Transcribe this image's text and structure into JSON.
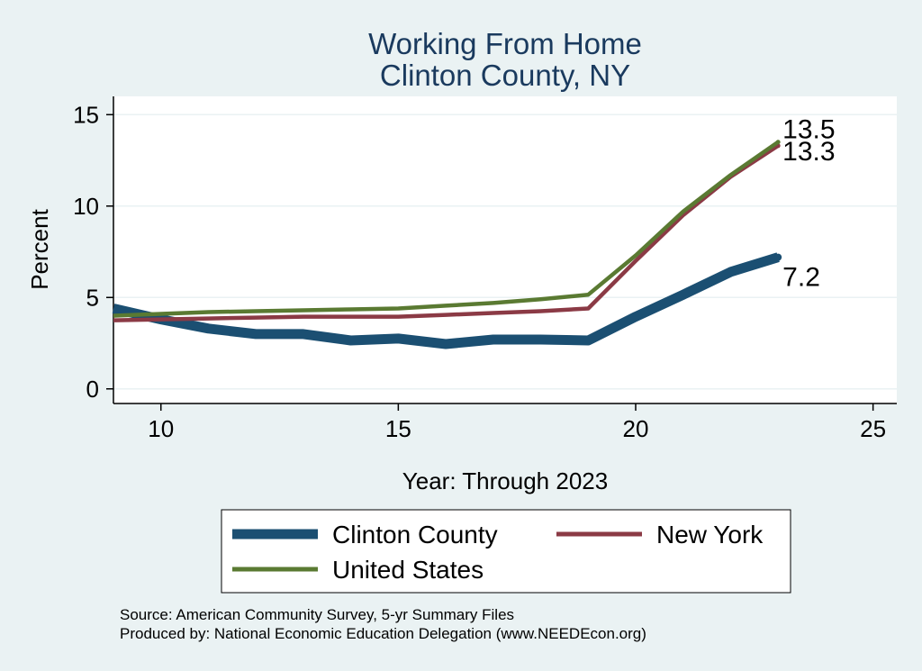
{
  "chart_data": {
    "type": "line",
    "title": "Working From Home",
    "subtitle": "Clinton County, NY",
    "xlabel": "Year: Through 2023",
    "ylabel": "Percent",
    "xlim": [
      9,
      25.5
    ],
    "ylim": [
      -0.8,
      16
    ],
    "xticks": [
      "10",
      "15",
      "20",
      "25"
    ],
    "yticks": [
      "0",
      "5",
      "10",
      "15"
    ],
    "grid": true,
    "legend_position": "bottom",
    "series": [
      {
        "name": "Clinton County",
        "color": "#1B4F72",
        "x": [
          9,
          10,
          11,
          12,
          13,
          14,
          15,
          16,
          17,
          18,
          19,
          20,
          21,
          22,
          23
        ],
        "y": [
          4.4,
          3.8,
          3.3,
          3.0,
          3.0,
          2.65,
          2.75,
          2.45,
          2.7,
          2.7,
          2.65,
          3.95,
          5.15,
          6.4,
          7.2
        ],
        "end_label": "7.2"
      },
      {
        "name": "New York",
        "color": "#8B3A45",
        "x": [
          9,
          10,
          11,
          12,
          13,
          14,
          15,
          16,
          17,
          18,
          19,
          20,
          21,
          22,
          23
        ],
        "y": [
          3.75,
          3.8,
          3.85,
          3.9,
          3.95,
          3.95,
          3.95,
          4.05,
          4.15,
          4.25,
          4.4,
          7.0,
          9.5,
          11.6,
          13.3
        ],
        "end_label": "13.3"
      },
      {
        "name": "United States",
        "color": "#5A7A32",
        "x": [
          9,
          10,
          11,
          12,
          13,
          14,
          15,
          16,
          17,
          18,
          19,
          20,
          21,
          22,
          23
        ],
        "y": [
          4.0,
          4.1,
          4.2,
          4.25,
          4.3,
          4.35,
          4.4,
          4.55,
          4.7,
          4.9,
          5.15,
          7.3,
          9.7,
          11.7,
          13.5
        ],
        "end_label": "13.5"
      }
    ],
    "source_note": "Source: American Community Survey, 5-yr Summary Files",
    "produced_note": "Produced by: National Economic Education Delegation (www.NEEDEcon.org)"
  }
}
